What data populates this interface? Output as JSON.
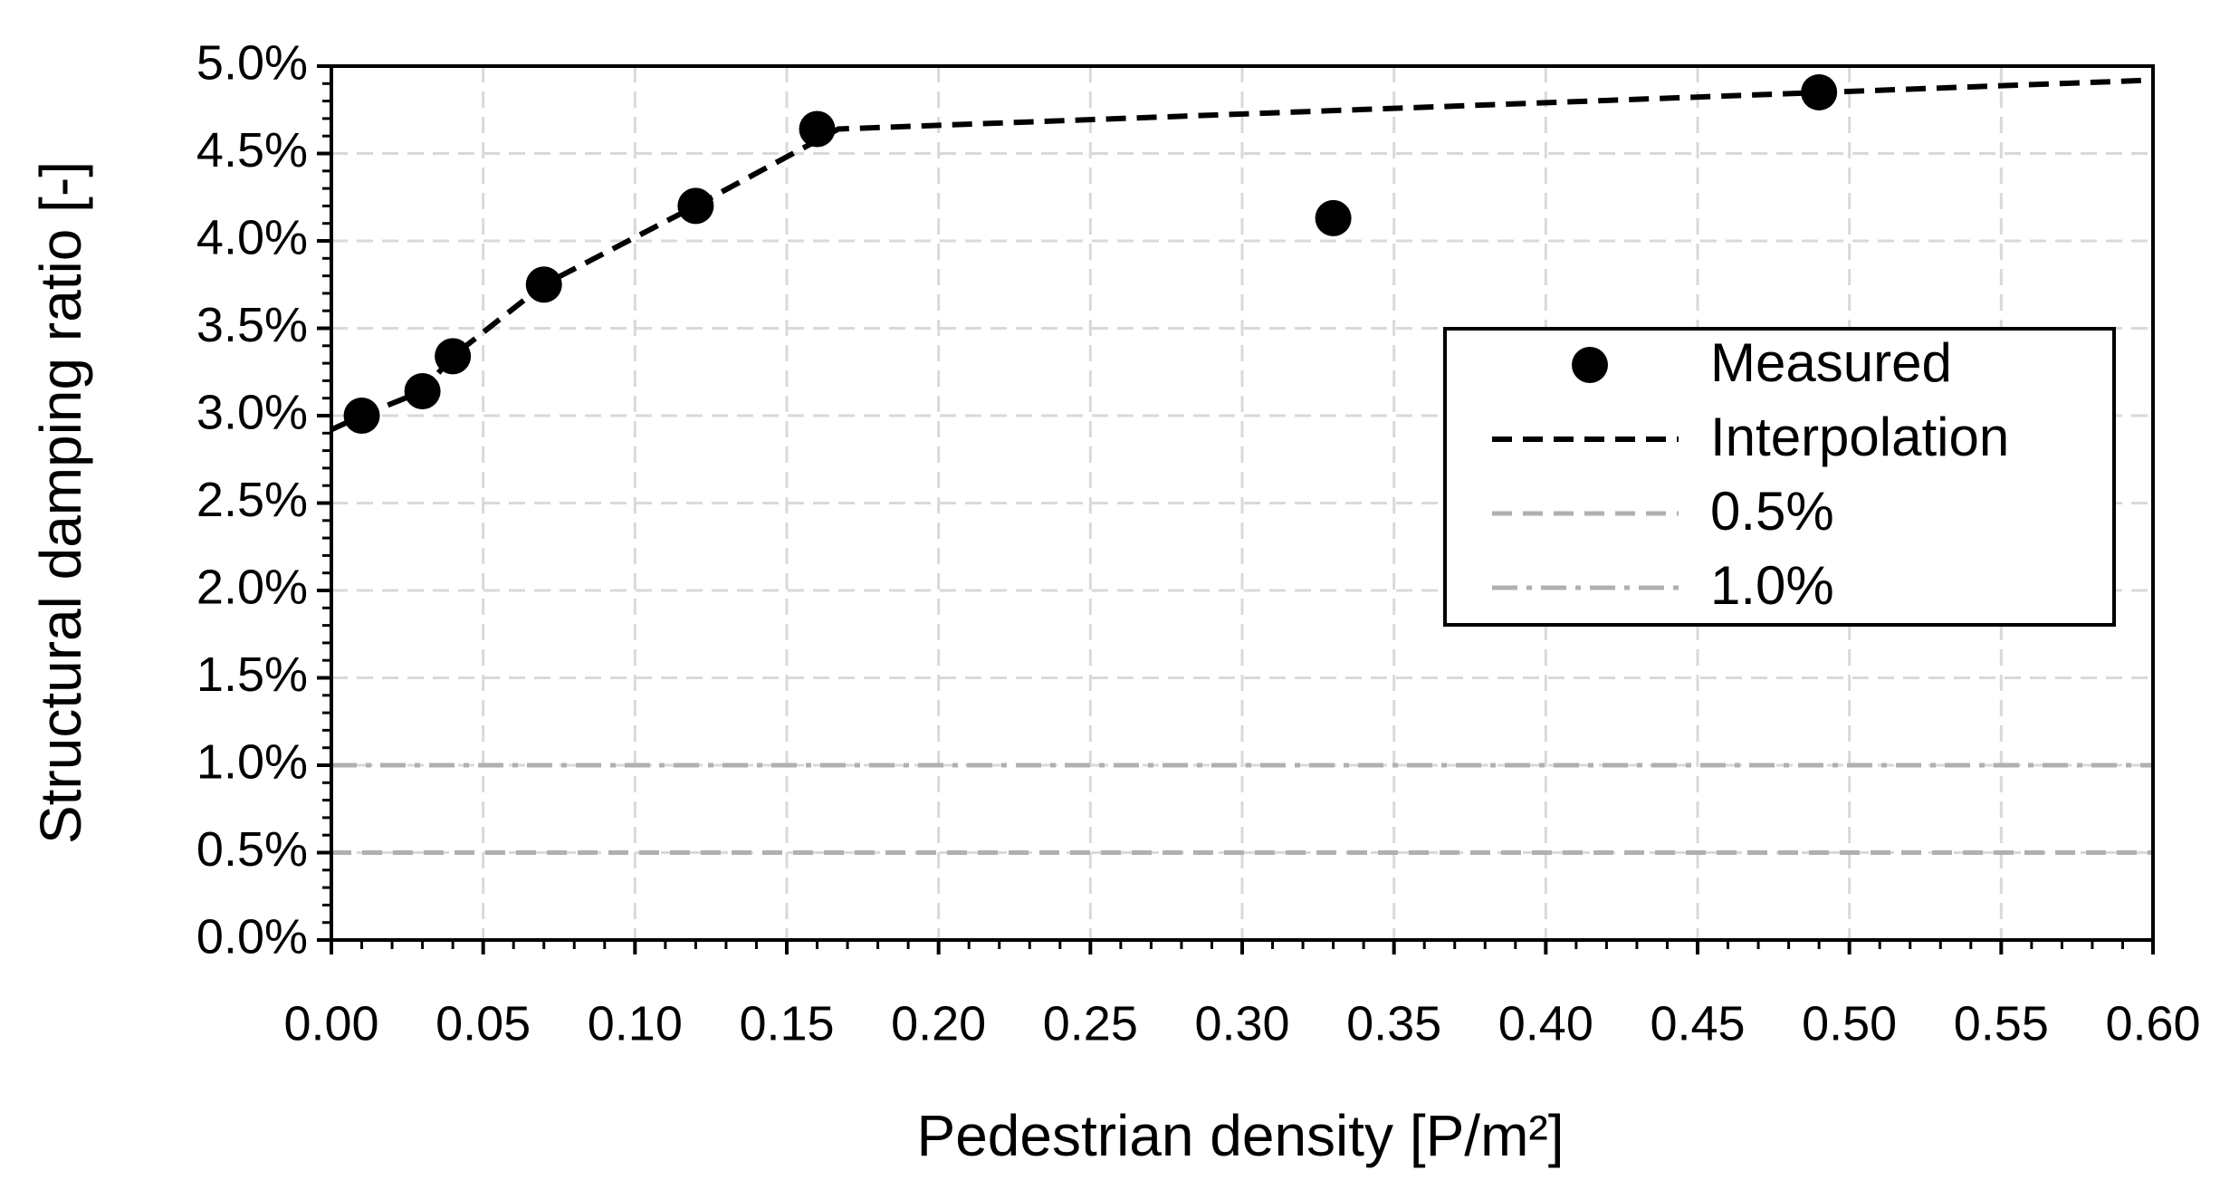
{
  "chart_data": {
    "type": "scatter",
    "x_label": "Pedestrian density [P/m²]",
    "y_label": "Structural damping ratio [-]",
    "xlim": [
      0,
      0.6
    ],
    "ylim": [
      0,
      5
    ],
    "xticks": [
      {
        "value": 0,
        "label": "0.00"
      },
      0.05,
      {
        "value": 0.1,
        "label": "0.10"
      },
      0.15,
      {
        "value": 0.2,
        "label": "0.20"
      },
      0.25,
      {
        "value": 0.3,
        "label": "0.30"
      },
      0.35,
      {
        "value": 0.4,
        "label": "0.40"
      },
      0.45,
      {
        "value": 0.5,
        "label": "0.50"
      },
      0.55,
      {
        "value": 0.6,
        "label": "0.60"
      }
    ],
    "yticks": [
      {
        "value": 0,
        "label": "0.0%"
      },
      {
        "value": 0.5,
        "label": "0.5%"
      },
      {
        "value": 1,
        "label": "1.0%"
      },
      {
        "value": 1.5,
        "label": "1.5%"
      },
      {
        "value": 2,
        "label": "2.0%"
      },
      {
        "value": 2.5,
        "label": "2.5%"
      },
      {
        "value": 3,
        "label": "3.0%"
      },
      {
        "value": 3.5,
        "label": "3.5%"
      },
      {
        "value": 4,
        "label": "4.0%"
      },
      {
        "value": 4.5,
        "label": "4.5%"
      },
      {
        "value": 5,
        "label": "5.0%"
      }
    ],
    "grid": true,
    "legend": "right",
    "series": [
      {
        "name": "Measured",
        "type": "scatter",
        "color": "#000000",
        "x": [
          0.01,
          0.03,
          0.04,
          0.07,
          0.12,
          0.16,
          0.33,
          0.49
        ],
        "values": [
          3.0,
          3.14,
          3.34,
          3.75,
          4.2,
          4.64,
          4.13,
          4.85
        ]
      },
      {
        "name": "Interpolation",
        "type": "line",
        "color": "#000000",
        "dash": "dash",
        "x": [
          0,
          0.01,
          0.03,
          0.04,
          0.07,
          0.12,
          0.167,
          0.6
        ],
        "values": [
          2.92,
          3.0,
          3.14,
          3.34,
          3.75,
          4.2,
          4.64,
          4.92
        ]
      },
      {
        "name": "0.5%",
        "type": "line",
        "color": "#b0b0b0",
        "dash": "dash",
        "x": [
          0,
          0.6
        ],
        "values": [
          0.5,
          0.5
        ]
      },
      {
        "name": "1.0%",
        "type": "line",
        "color": "#b0b0b0",
        "dash": "dashdot",
        "x": [
          0,
          0.6
        ],
        "values": [
          1.0,
          1.0
        ]
      }
    ]
  }
}
